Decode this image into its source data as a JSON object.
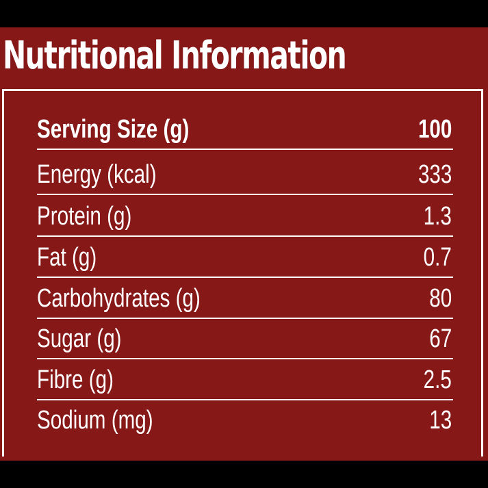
{
  "title": "Nutritional Information",
  "colors": {
    "panel_background": "#861818",
    "text": "#ffffff",
    "outer_background": "#000000"
  },
  "table": {
    "header": {
      "label": "Serving Size (g)",
      "value": "100"
    },
    "rows": [
      {
        "label": "Energy (kcal)",
        "value": "333"
      },
      {
        "label": "Protein (g)",
        "value": "1.3"
      },
      {
        "label": "Fat (g)",
        "value": "0.7"
      },
      {
        "label": "Carbohydrates (g)",
        "value": "80"
      },
      {
        "label": "Sugar (g)",
        "value": "67"
      },
      {
        "label": "Fibre (g)",
        "value": "2.5"
      },
      {
        "label": "Sodium (mg)",
        "value": "13"
      }
    ]
  }
}
